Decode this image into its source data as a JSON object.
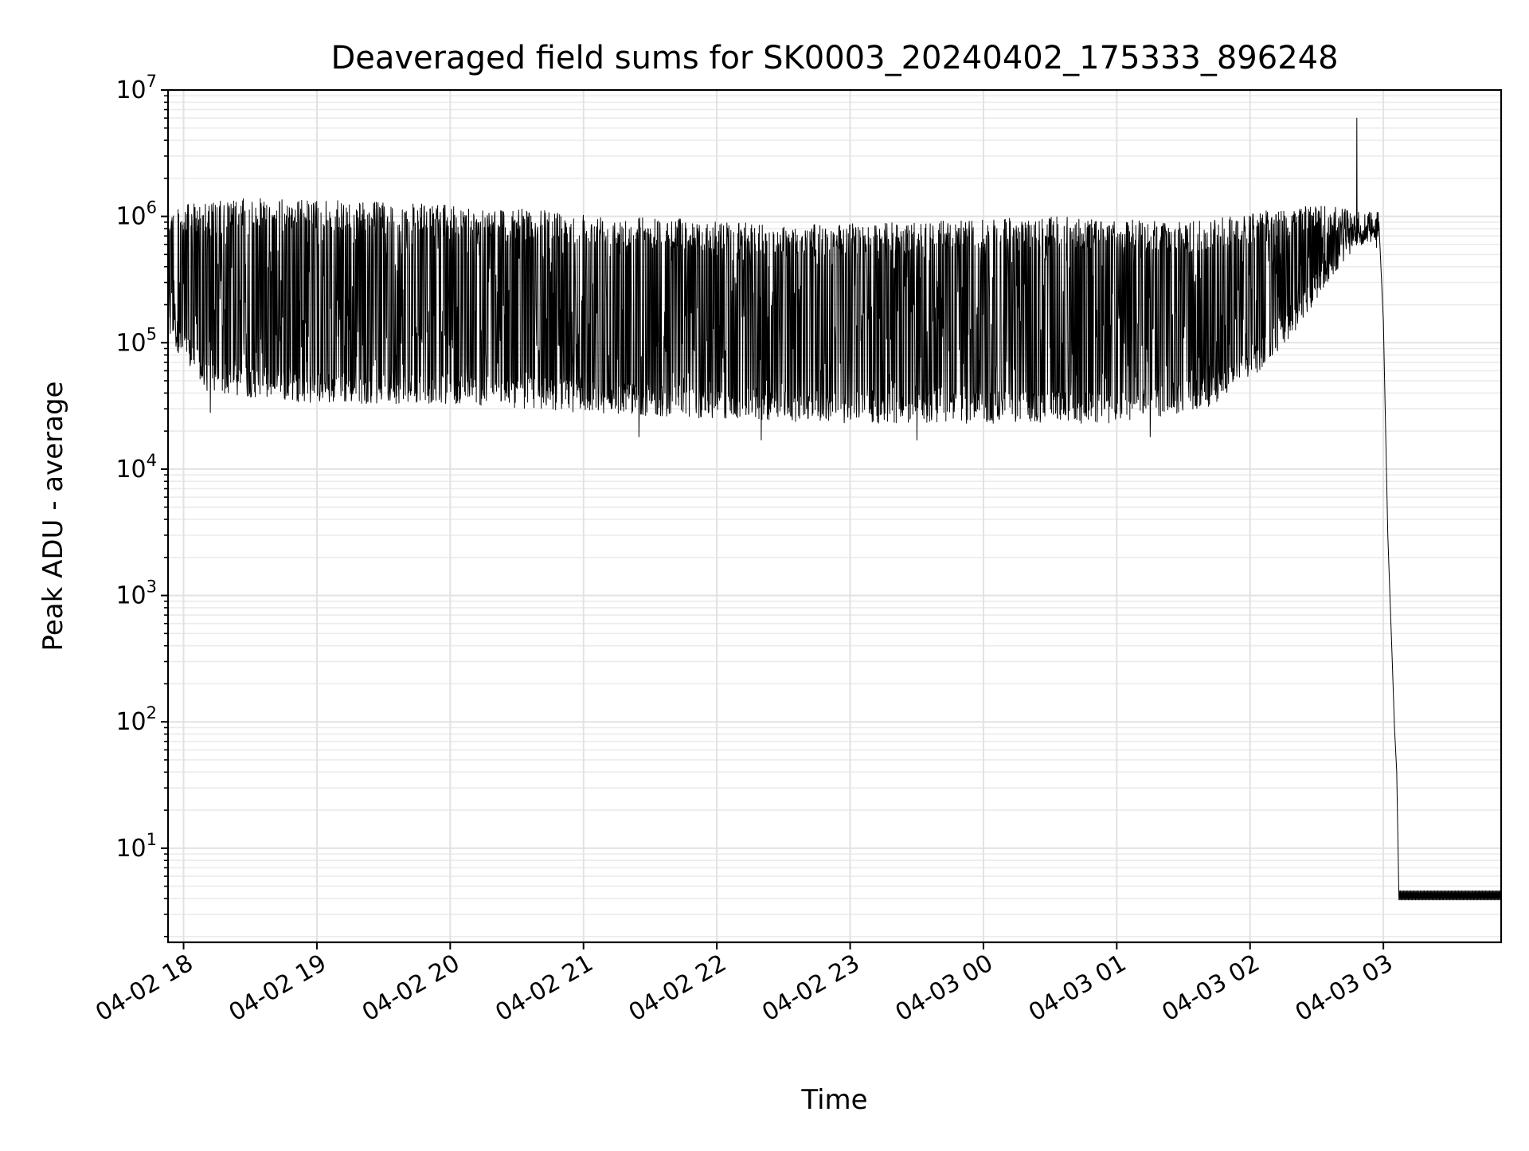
{
  "chart_data": {
    "type": "line",
    "title": "Deaveraged field sums for SK0003_20240402_175333_896248",
    "xlabel": "Time",
    "ylabel": "Peak ADU - average",
    "y_scale": "log",
    "ylim": [
      1.8,
      10000000
    ],
    "xlim": [
      "2024-04-02 17:53",
      "2024-04-03 03:53"
    ],
    "grid": "major and minor",
    "x_ticks": [
      {
        "label": "04-02 18",
        "t": "2024-04-02 18:00"
      },
      {
        "label": "04-02 19",
        "t": "2024-04-02 19:00"
      },
      {
        "label": "04-02 20",
        "t": "2024-04-02 20:00"
      },
      {
        "label": "04-02 21",
        "t": "2024-04-02 21:00"
      },
      {
        "label": "04-02 22",
        "t": "2024-04-02 22:00"
      },
      {
        "label": "04-02 23",
        "t": "2024-04-02 23:00"
      },
      {
        "label": "04-03 00",
        "t": "2024-04-03 00:00"
      },
      {
        "label": "04-03 01",
        "t": "2024-04-03 01:00"
      },
      {
        "label": "04-03 02",
        "t": "2024-04-03 02:00"
      },
      {
        "label": "04-03 03",
        "t": "2024-04-03 03:00"
      }
    ],
    "y_ticks": [
      {
        "base": "10",
        "exp": "1",
        "value": 10
      },
      {
        "base": "10",
        "exp": "2",
        "value": 100
      },
      {
        "base": "10",
        "exp": "3",
        "value": 1000
      },
      {
        "base": "10",
        "exp": "4",
        "value": 10000
      },
      {
        "base": "10",
        "exp": "5",
        "value": 100000
      },
      {
        "base": "10",
        "exp": "6",
        "value": 1000000
      },
      {
        "base": "10",
        "exp": "7",
        "value": 10000000
      }
    ],
    "series": [
      {
        "color": "#000000",
        "line_width": 1,
        "style": "dense oscillation between a lower envelope and an upper envelope",
        "upper_envelope": [
          {
            "t": "2024-04-02 17:53",
            "y": 1200000
          },
          {
            "t": "2024-04-02 18:30",
            "y": 1400000
          },
          {
            "t": "2024-04-02 19:30",
            "y": 1300000
          },
          {
            "t": "2024-04-02 20:30",
            "y": 1150000
          },
          {
            "t": "2024-04-02 21:30",
            "y": 1000000
          },
          {
            "t": "2024-04-02 22:30",
            "y": 850000
          },
          {
            "t": "2024-04-02 23:30",
            "y": 900000
          },
          {
            "t": "2024-04-03 00:30",
            "y": 1000000
          },
          {
            "t": "2024-04-03 01:30",
            "y": 900000
          },
          {
            "t": "2024-04-03 02:30",
            "y": 1300000
          },
          {
            "t": "2024-04-03 02:58",
            "y": 1000000
          }
        ],
        "lower_envelope": [
          {
            "t": "2024-04-02 17:53",
            "y": 110000
          },
          {
            "t": "2024-04-02 18:10",
            "y": 40000
          },
          {
            "t": "2024-04-02 19:00",
            "y": 33000
          },
          {
            "t": "2024-04-02 20:00",
            "y": 33000
          },
          {
            "t": "2024-04-02 21:00",
            "y": 28000
          },
          {
            "t": "2024-04-02 22:00",
            "y": 25000
          },
          {
            "t": "2024-04-02 23:00",
            "y": 23000
          },
          {
            "t": "2024-04-03 00:00",
            "y": 23000
          },
          {
            "t": "2024-04-03 01:00",
            "y": 23000
          },
          {
            "t": "2024-04-03 01:40",
            "y": 30000
          },
          {
            "t": "2024-04-03 02:00",
            "y": 50000
          },
          {
            "t": "2024-04-03 02:20",
            "y": 120000
          },
          {
            "t": "2024-04-03 02:35",
            "y": 300000
          },
          {
            "t": "2024-04-03 02:45",
            "y": 500000
          },
          {
            "t": "2024-04-03 02:58",
            "y": 700000
          }
        ],
        "dips": [
          {
            "t": "2024-04-02 18:12",
            "y": 28000
          },
          {
            "t": "2024-04-02 21:25",
            "y": 18000
          },
          {
            "t": "2024-04-02 22:20",
            "y": 17000
          },
          {
            "t": "2024-04-02 23:30",
            "y": 17000
          },
          {
            "t": "2024-04-03 01:15",
            "y": 18000
          }
        ],
        "spike": {
          "t": "2024-04-03 02:48",
          "y": 6000000
        },
        "decay": [
          {
            "t": "2024-04-03 02:58",
            "y": 900000
          },
          {
            "t": "2024-04-03 03:00",
            "y": 150000
          },
          {
            "t": "2024-04-03 03:02",
            "y": 3000
          },
          {
            "t": "2024-04-03 03:04",
            "y": 300
          },
          {
            "t": "2024-04-03 03:05",
            "y": 90
          },
          {
            "t": "2024-04-03 03:06",
            "y": 40
          },
          {
            "t": "2024-04-03 03:07",
            "y": 3.9
          }
        ],
        "floor": {
          "t_start": "2024-04-03 03:07",
          "t_end": "2024-04-03 03:53",
          "low": 3.9,
          "high": 4.6
        }
      }
    ]
  }
}
